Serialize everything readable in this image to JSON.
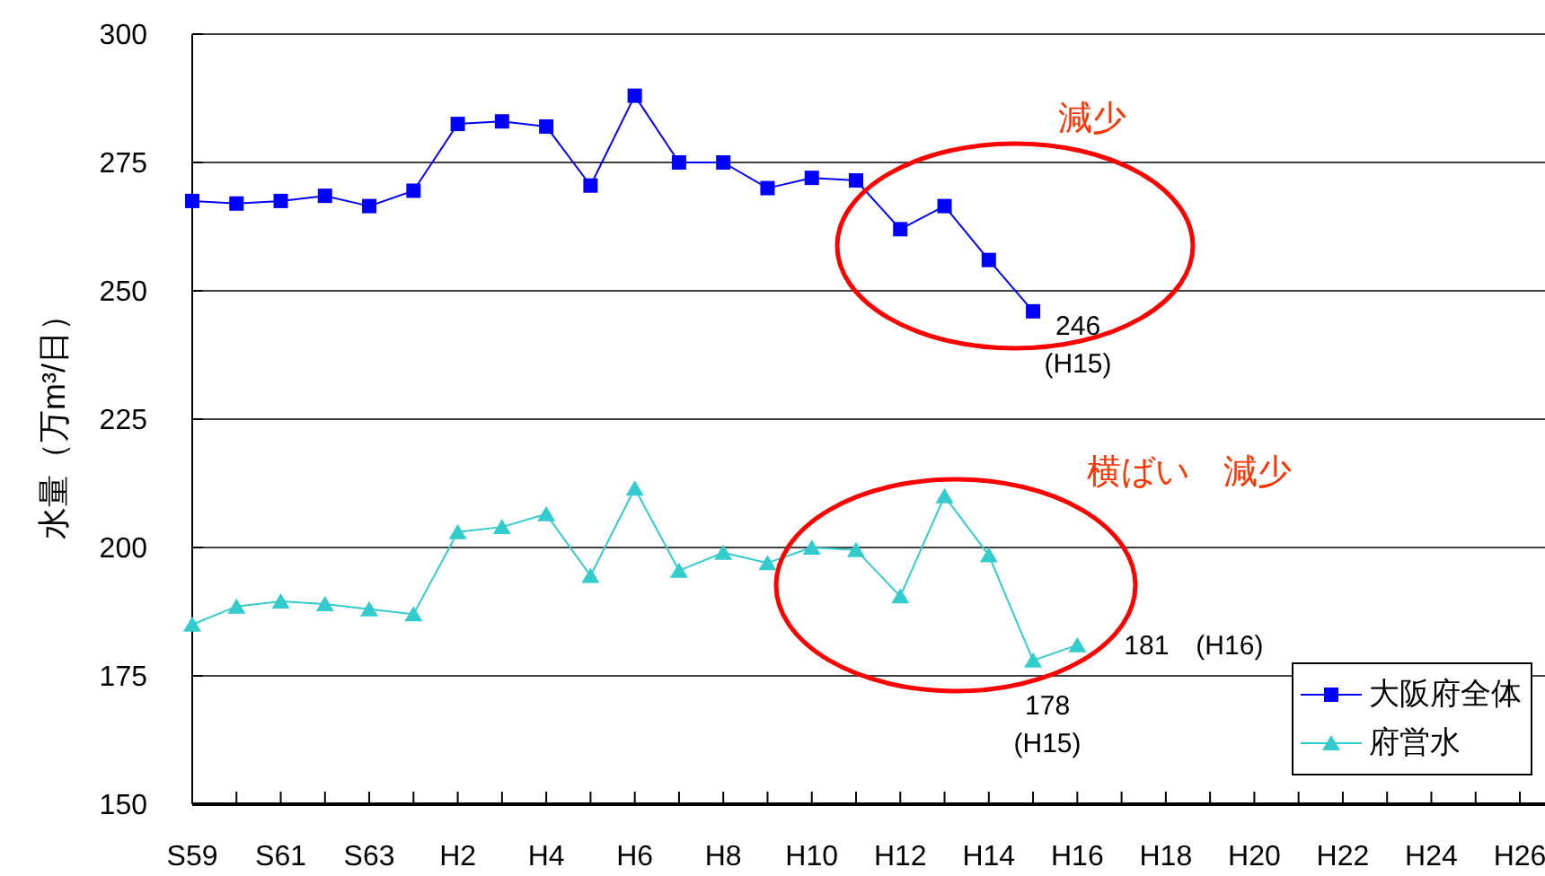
{
  "chart_data": {
    "type": "line",
    "ylabel": "水量（万m³/日）",
    "categories": [
      "S59",
      null,
      "S61",
      null,
      "S63",
      null,
      "H2",
      null,
      "H4",
      null,
      "H6",
      null,
      "H8",
      null,
      "H10",
      null,
      "H12",
      null,
      "H14",
      null,
      "H16",
      null,
      "H18",
      null,
      "H20",
      null,
      "H22",
      null,
      "H24",
      null,
      "H26"
    ],
    "series": [
      {
        "name": "大阪府全体",
        "color": "#0000ff",
        "marker": "square",
        "values": [
          267.5,
          267,
          267.5,
          268.5,
          266.5,
          269.5,
          282.5,
          283,
          282,
          270.5,
          288,
          275,
          275,
          270,
          272,
          271.5,
          262,
          266.5,
          256,
          246,
          null,
          null,
          null,
          null,
          null,
          null,
          null,
          null,
          null,
          null,
          null
        ],
        "value_labels": [
          null,
          null,
          null,
          null,
          null,
          null,
          null,
          null,
          null,
          null,
          null,
          null,
          null,
          null,
          null,
          null,
          null,
          null,
          null,
          "246\n(H15)",
          null,
          null,
          null,
          null,
          null,
          null,
          null,
          null,
          null,
          null,
          null
        ]
      },
      {
        "name": "府営水",
        "color": "#33cccc",
        "marker": "triangle",
        "values": [
          185,
          188.5,
          189.5,
          189,
          188,
          187,
          203,
          204,
          206.5,
          194.5,
          211.5,
          195.5,
          199,
          197,
          200,
          199.5,
          190.5,
          210,
          198.5,
          178,
          181,
          null,
          null,
          null,
          null,
          null,
          null,
          null,
          null,
          null,
          null
        ],
        "value_labels": [
          null,
          null,
          null,
          null,
          null,
          null,
          null,
          null,
          null,
          null,
          null,
          null,
          null,
          null,
          null,
          null,
          null,
          null,
          null,
          "178\n(H15)",
          "181　(H16)",
          null,
          null,
          null,
          null,
          null,
          null,
          null,
          null,
          null,
          null
        ]
      }
    ],
    "ylim": [
      150,
      300
    ],
    "yticks": [
      150,
      175,
      200,
      225,
      250,
      275,
      300
    ],
    "grid": "y",
    "legend": "bottom right",
    "annotations": [
      "減少",
      "横ばい　減少"
    ]
  }
}
